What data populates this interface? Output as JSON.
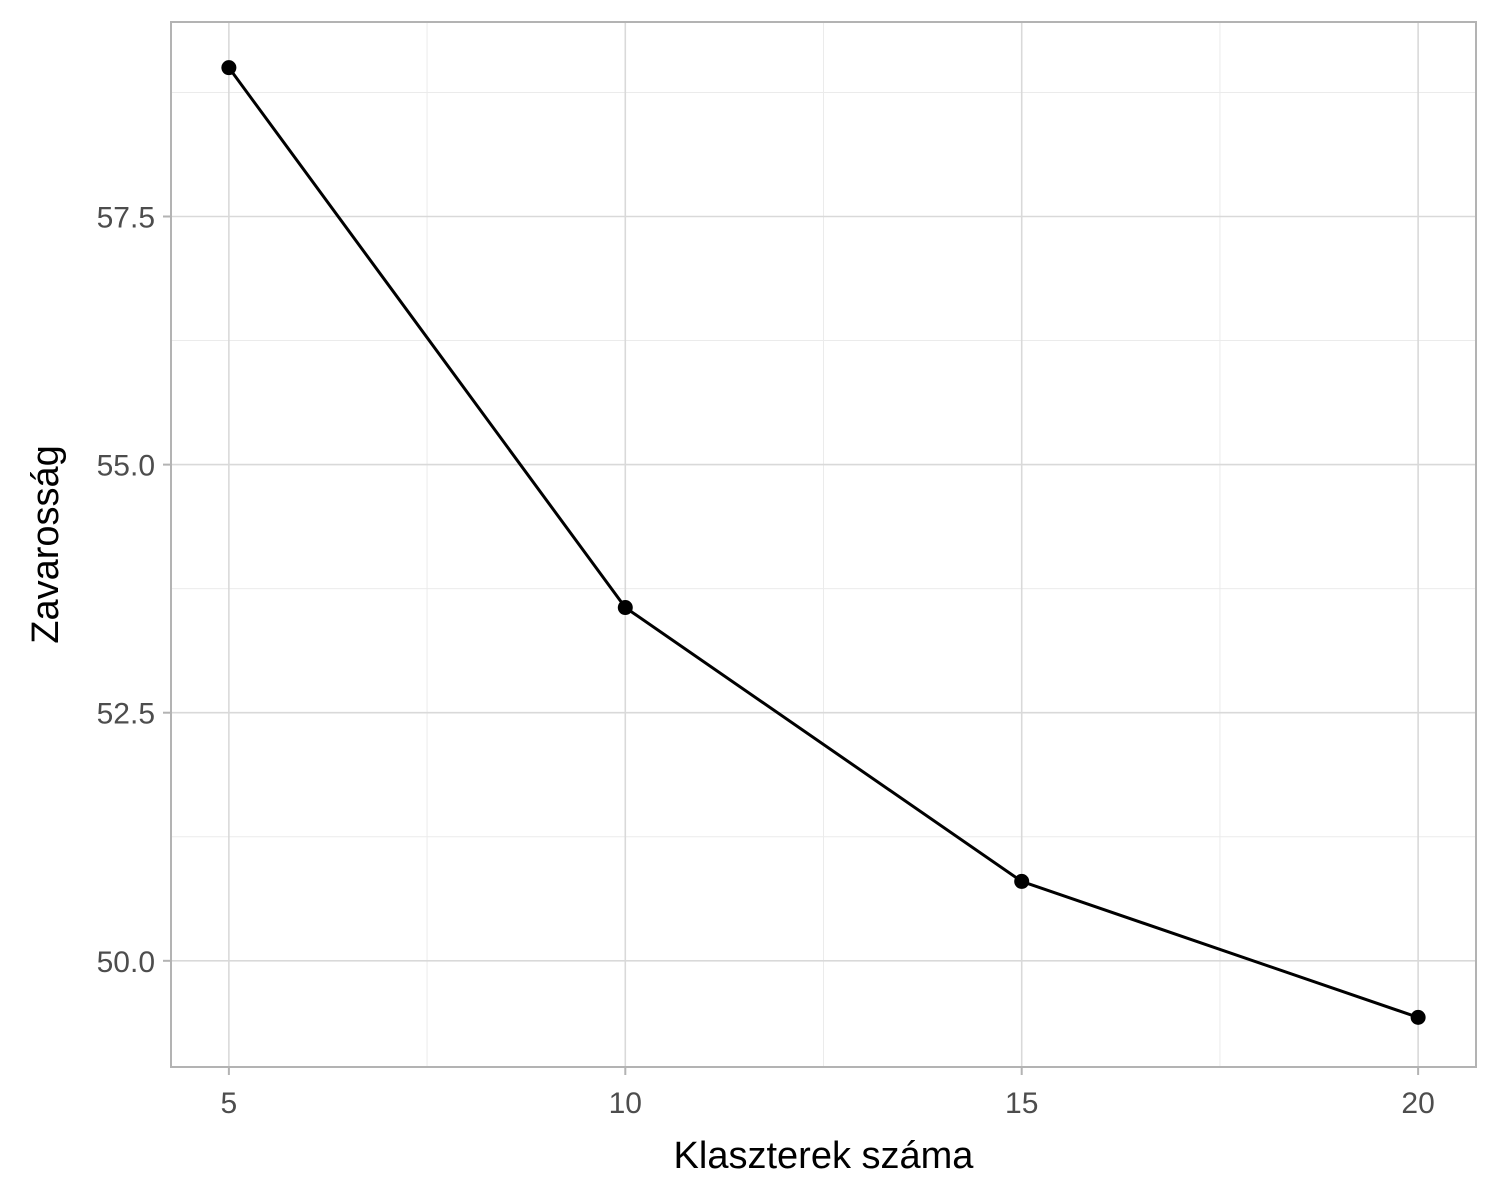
{
  "chart_data": {
    "type": "line",
    "title": "",
    "xlabel": "Klaszterek száma",
    "ylabel": "Zavarosság",
    "x": [
      5,
      10,
      15,
      20
    ],
    "series": [
      {
        "values": [
          59.0,
          53.56,
          50.8,
          49.43
        ]
      }
    ],
    "xlim": [
      4.27,
      20.73
    ],
    "ylim": [
      48.93,
      59.46
    ],
    "x_ticks": [
      5,
      10,
      15,
      20
    ],
    "x_tick_labels": [
      "5",
      "10",
      "15",
      "20"
    ],
    "y_ticks": [
      50.0,
      52.5,
      55.0,
      57.5
    ],
    "y_tick_labels": [
      "50.0",
      "52.5",
      "55.0",
      "57.5"
    ],
    "grid": true,
    "colors": {
      "line": "#000000",
      "point": "#000000"
    }
  }
}
